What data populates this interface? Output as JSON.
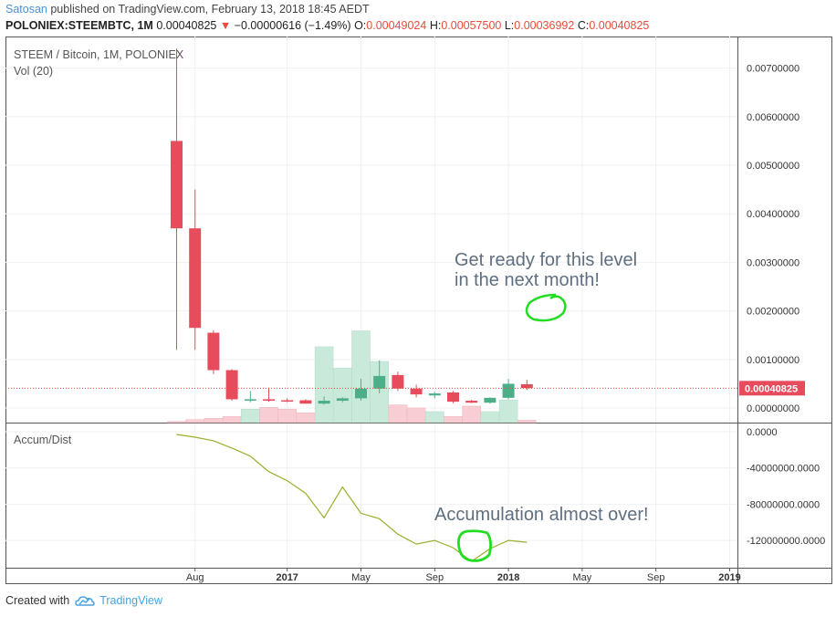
{
  "header": {
    "author": "Satosan",
    "published_text": " published on TradingView.com, February 13, 2018 18:45 AEDT",
    "symbol": "POLONIEX:STEEMBTC, 1M",
    "last": "0.00040825",
    "change_arrow": "▼",
    "change": "−0.00000616 (−1.49%)",
    "o_label": "O:",
    "o_value": "0.00049024",
    "h_label": "H:",
    "h_value": "0.00057500",
    "l_label": "L:",
    "l_value": "0.00036992",
    "c_label": "C:",
    "c_value": "0.00040825"
  },
  "footer": {
    "created_with": "Created with",
    "brand": "TradingView"
  },
  "colors": {
    "up": "#4caf8a",
    "down": "#e64c5b",
    "vol_up": "#c9eadb",
    "vol_down": "#f8cdd3",
    "indicator": "#9aaf2c",
    "annotation_circle": "#22dd22",
    "annotation_text": "#5f6f80"
  },
  "chart_data": [
    {
      "type": "candlestick",
      "title": "STEEM / Bitcoin, 1M, POLONIEX",
      "subtitle": "Vol (20)",
      "ylim": [
        -0.0003,
        0.0075
      ],
      "yticks": [
        0.007,
        0.006,
        0.005,
        0.004,
        0.003,
        0.002,
        0.001,
        0.0
      ],
      "ytick_labels": [
        "0.00700000",
        "0.00600000",
        "0.00500000",
        "0.00400000",
        "0.00300000",
        "0.00200000",
        "0.00100000",
        "0.00000000"
      ],
      "last_price_label": "0.00040825",
      "last_price": 0.00040825,
      "candles": [
        {
          "month": "2016-07",
          "o": 0.0055,
          "h": 0.0074,
          "l": 0.0012,
          "c": 0.0037
        },
        {
          "month": "2016-08",
          "o": 0.0037,
          "h": 0.0045,
          "l": 0.0012,
          "c": 0.00165
        },
        {
          "month": "2016-09",
          "o": 0.00155,
          "h": 0.0016,
          "l": 0.0007,
          "c": 0.00078
        },
        {
          "month": "2016-10",
          "o": 0.00078,
          "h": 0.0008,
          "l": 0.00015,
          "c": 0.00018
        },
        {
          "month": "2016-11",
          "o": 0.00016,
          "h": 0.00035,
          "l": 0.00012,
          "c": 0.00018
        },
        {
          "month": "2016-12",
          "o": 0.00018,
          "h": 0.00042,
          "l": 0.00013,
          "c": 0.00015
        },
        {
          "month": "2017-01",
          "o": 0.00016,
          "h": 0.0002,
          "l": 0.00012,
          "c": 0.00014
        },
        {
          "month": "2017-02",
          "o": 0.00016,
          "h": 0.00018,
          "l": 9e-05,
          "c": 9e-05
        },
        {
          "month": "2017-03",
          "o": 9e-05,
          "h": 0.00024,
          "l": 7e-05,
          "c": 0.00015
        },
        {
          "month": "2017-04",
          "o": 0.00015,
          "h": 0.00022,
          "l": 0.00012,
          "c": 0.0002
        },
        {
          "month": "2017-05",
          "o": 0.0002,
          "h": 0.0006,
          "l": 0.00015,
          "c": 0.0004
        },
        {
          "month": "2017-06",
          "o": 0.0004,
          "h": 0.00098,
          "l": 0.0003,
          "c": 0.00066
        },
        {
          "month": "2017-07",
          "o": 0.00068,
          "h": 0.00075,
          "l": 0.00035,
          "c": 0.0004
        },
        {
          "month": "2017-08",
          "o": 0.0004,
          "h": 0.00048,
          "l": 0.00022,
          "c": 0.00028
        },
        {
          "month": "2017-09",
          "o": 0.00026,
          "h": 0.00033,
          "l": 0.0002,
          "c": 0.0003
        },
        {
          "month": "2017-10",
          "o": 0.00032,
          "h": 0.00035,
          "l": 0.0001,
          "c": 0.00013
        },
        {
          "month": "2017-11",
          "o": 0.00015,
          "h": 0.00017,
          "l": 0.0001,
          "c": 0.00011
        },
        {
          "month": "2017-12",
          "o": 0.00011,
          "h": 0.00022,
          "l": 9e-05,
          "c": 0.00021
        },
        {
          "month": "2018-01",
          "o": 0.00021,
          "h": 0.0006,
          "l": 0.00018,
          "c": 0.0005
        },
        {
          "month": "2018-02",
          "o": 0.00049,
          "h": 0.00058,
          "l": 0.00037,
          "c": 0.00041
        }
      ],
      "volume_rel": [
        0.02,
        0.05,
        0.07,
        0.1,
        0.22,
        0.25,
        0.22,
        0.16,
        1.24,
        0.89,
        1.5,
        1.0,
        0.29,
        0.24,
        0.18,
        0.1,
        0.27,
        0.18,
        0.37,
        0.04
      ],
      "annotation": "Get ready for this level\nin the next month!",
      "annotation_lines": [
        "Get ready for this level",
        "in the next month!"
      ]
    },
    {
      "type": "line",
      "title": "Accum/Dist",
      "ylim": [
        -140000000,
        0
      ],
      "yticks": [
        0,
        -40000000,
        -80000000,
        -120000000
      ],
      "ytick_labels": [
        "0.0000",
        "-40000000.0000",
        "-80000000.0000",
        "-120000000.0000"
      ],
      "x": [
        "2016-07",
        "2016-08",
        "2016-09",
        "2016-10",
        "2016-11",
        "2016-12",
        "2017-01",
        "2017-02",
        "2017-03",
        "2017-04",
        "2017-05",
        "2017-06",
        "2017-07",
        "2017-08",
        "2017-09",
        "2017-10",
        "2017-11",
        "2017-12",
        "2018-01",
        "2018-02"
      ],
      "values": [
        -3000000,
        -6000000,
        -10000000,
        -18000000,
        -27000000,
        -44000000,
        -54000000,
        -68000000,
        -95000000,
        -61000000,
        -90000000,
        -96000000,
        -113000000,
        -124000000,
        -120000000,
        -128000000,
        -143000000,
        -129000000,
        -120000000,
        -122000000
      ],
      "annotation": "Accumulation almost over!"
    }
  ],
  "x_axis": {
    "labels": [
      "Aug",
      "2017",
      "May",
      "Sep",
      "2018",
      "May",
      "Sep",
      "2019"
    ]
  }
}
